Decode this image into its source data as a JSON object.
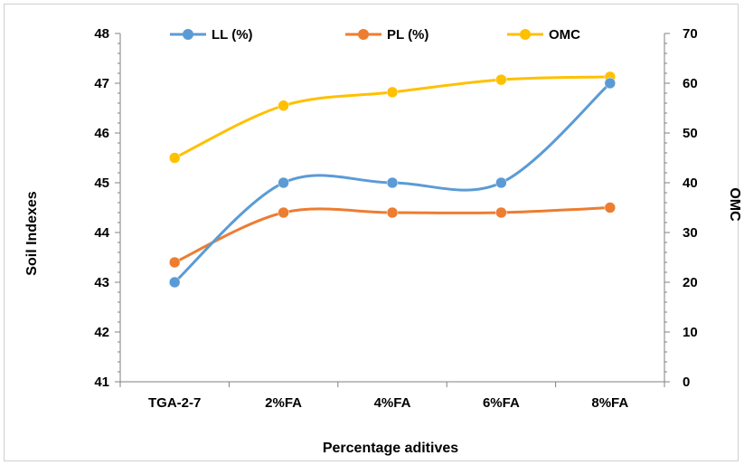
{
  "chart_data": {
    "type": "line",
    "categories": [
      "TGA-2-7",
      "2%FA",
      "4%FA",
      "6%FA",
      "8%FA"
    ],
    "series": [
      {
        "name": "LL (%)",
        "axis": "left",
        "color": "#5b9bd5",
        "values": [
          43,
          45,
          45,
          45,
          47
        ]
      },
      {
        "name": "PL (%)",
        "axis": "left",
        "color": "#ed7d31",
        "values": [
          43.4,
          44.4,
          44.4,
          44.4,
          44.5
        ]
      },
      {
        "name": "OMC",
        "axis": "right",
        "color": "#ffc000",
        "values": [
          45,
          55.5,
          58.2,
          60.7,
          61.3
        ]
      }
    ],
    "xlabel": "Percentage aditives",
    "ylabel": "Soil Indexes",
    "y2label": "OMC",
    "ylim": [
      41,
      48
    ],
    "y2lim": [
      0,
      70
    ],
    "yticks": [
      "41",
      "42",
      "43",
      "44",
      "45",
      "46",
      "47",
      "48"
    ],
    "y2ticks": [
      "0",
      "10",
      "20",
      "30",
      "40",
      "50",
      "60",
      "70"
    ],
    "grid": false,
    "legend": "top",
    "smooth": true
  }
}
